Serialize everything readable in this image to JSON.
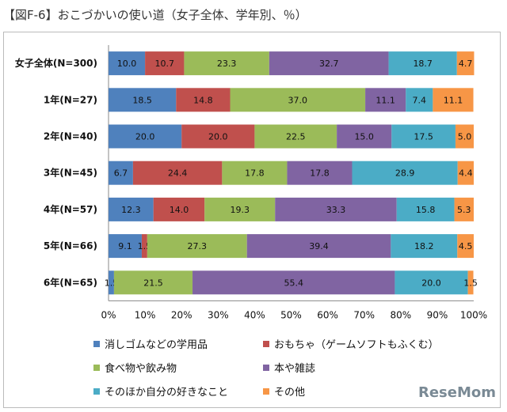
{
  "title": "【図F-6】おこづかいの使い道（女子全体、学年別、％）",
  "chart_data": {
    "type": "bar",
    "stacked": true,
    "orientation": "horizontal",
    "categories": [
      "女子全体(N=300)",
      "1年(N=27)",
      "2年(N=40)",
      "3年(N=45)",
      "4年(N=57)",
      "5年(N=66)",
      "6年(N=65)"
    ],
    "series": [
      {
        "name": "消しゴムなどの学用品",
        "color": "#4f81bd",
        "values": [
          10.0,
          18.5,
          20.0,
          6.7,
          12.3,
          9.1,
          1.5
        ]
      },
      {
        "name": "おもちゃ（ゲームソフトもふくむ）",
        "color": "#c0504d",
        "values": [
          10.7,
          14.8,
          20.0,
          24.4,
          14.0,
          1.5,
          0
        ]
      },
      {
        "name": "食べ物や飲み物",
        "color": "#9bbb59",
        "values": [
          23.3,
          37.0,
          22.5,
          17.8,
          19.3,
          27.3,
          21.5
        ]
      },
      {
        "name": "本や雑誌",
        "color": "#8064a2",
        "values": [
          32.7,
          11.1,
          15.0,
          17.8,
          33.3,
          39.4,
          55.4
        ]
      },
      {
        "name": "そのほか自分の好きなこと",
        "color": "#4bacc6",
        "values": [
          18.7,
          7.4,
          17.5,
          28.9,
          15.8,
          18.2,
          20.0
        ]
      },
      {
        "name": "その他",
        "color": "#f79646",
        "values": [
          4.7,
          11.1,
          5.0,
          4.4,
          5.3,
          4.5,
          1.5
        ]
      }
    ],
    "xlim": [
      0,
      100
    ],
    "xticks": [
      "0%",
      "10%",
      "20%",
      "30%",
      "40%",
      "50%",
      "60%",
      "70%",
      "80%",
      "90%",
      "100%"
    ],
    "legend": "bottom"
  },
  "logo": "ReseMom"
}
